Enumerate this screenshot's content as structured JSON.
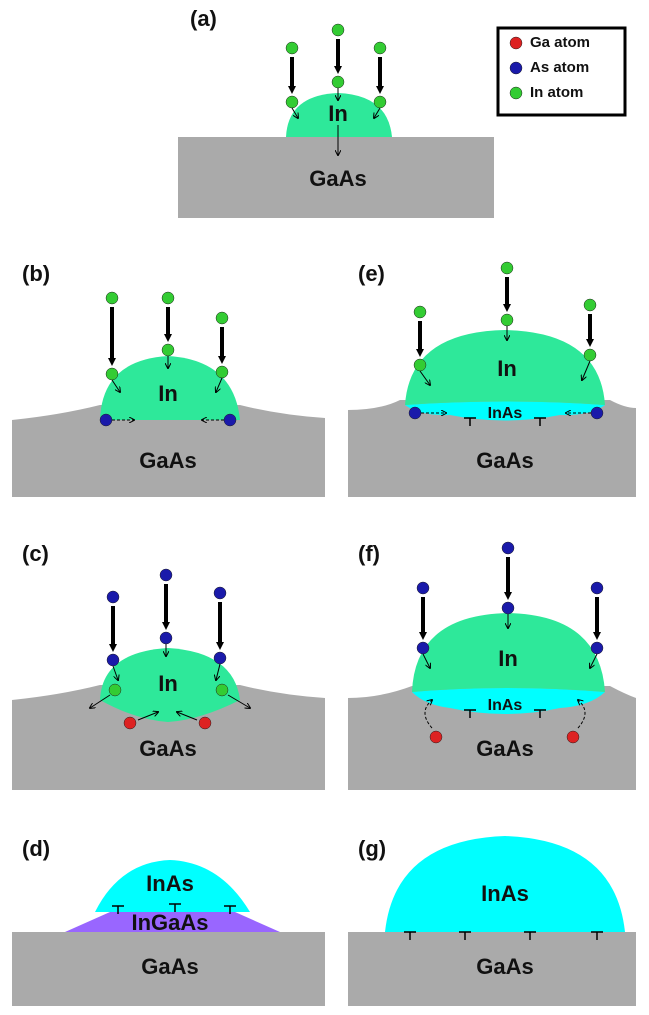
{
  "legend": [
    {
      "label": "Ga atom"
    },
    {
      "label": "As atom"
    },
    {
      "label": "In atom"
    }
  ],
  "panels": [
    {
      "label": "(a)",
      "substrate": "GaAs",
      "droplet": "In"
    },
    {
      "label": "(b)",
      "substrate": "GaAs",
      "droplet": "In"
    },
    {
      "label": "(e)",
      "substrate": "GaAs",
      "droplet": "In",
      "layer": "InAs"
    },
    {
      "label": "(c)",
      "substrate": "GaAs",
      "droplet": "In"
    },
    {
      "label": "(f)",
      "substrate": "GaAs",
      "droplet": "In",
      "layer": "InAs"
    },
    {
      "label": "(d)",
      "substrate": "GaAs",
      "droplet": "InAs",
      "layer": "InGaAs"
    },
    {
      "label": "(g)",
      "substrate": "GaAs",
      "droplet": "InAs"
    }
  ]
}
